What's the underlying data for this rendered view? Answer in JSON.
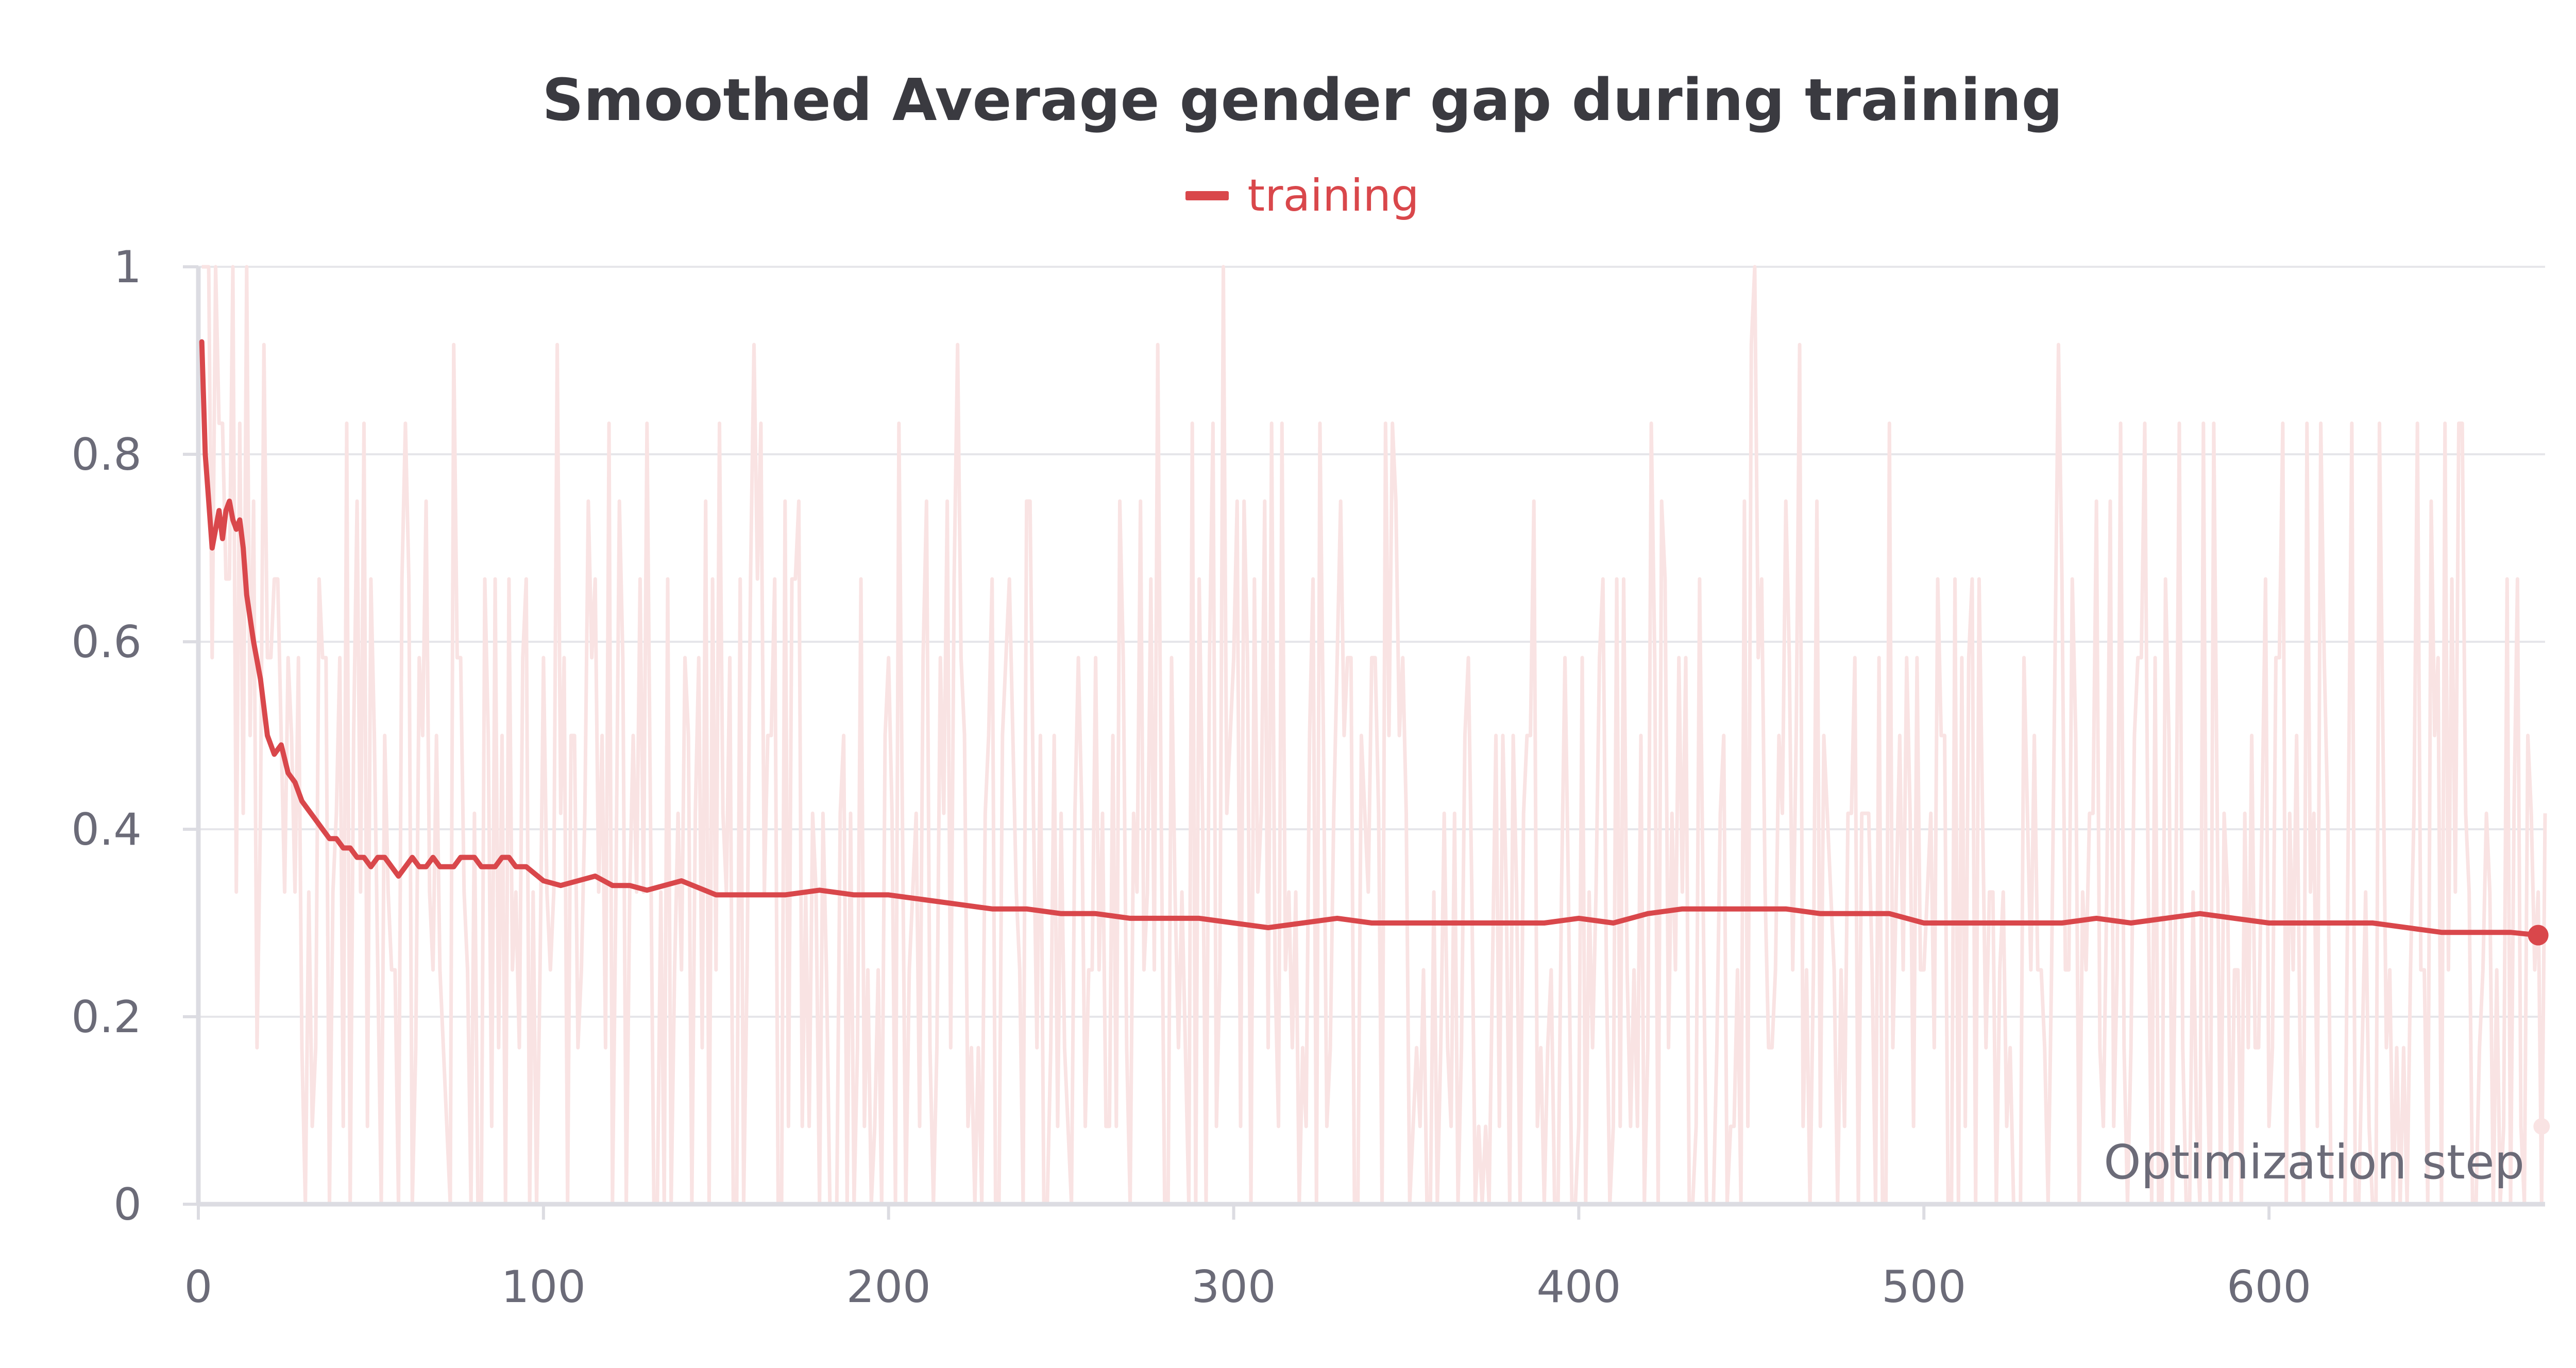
{
  "chart_data": {
    "type": "line",
    "title": "Smoothed Average gender gap during training",
    "xlabel": "Optimization step",
    "ylabel": "",
    "xlim": [
      0,
      680
    ],
    "ylim": [
      0,
      1
    ],
    "xticks": [
      0,
      100,
      200,
      300,
      400,
      500,
      600
    ],
    "yticks": [
      0,
      0.2,
      0.4,
      0.6,
      0.8,
      1
    ],
    "ytick_labels": [
      "0",
      "0.2",
      "0.4",
      "0.6",
      "0.8",
      "1"
    ],
    "grid": true,
    "legend": "top-center",
    "series": [
      {
        "name": "training",
        "color": "#d9474b",
        "raw_color": "#f9e3e3",
        "smoothed": {
          "x": [
            1,
            2,
            3,
            4,
            5,
            6,
            7,
            8,
            9,
            10,
            11,
            12,
            13,
            14,
            16,
            18,
            20,
            22,
            24,
            26,
            28,
            30,
            32,
            34,
            36,
            38,
            40,
            42,
            44,
            46,
            48,
            50,
            52,
            54,
            56,
            58,
            60,
            62,
            64,
            66,
            68,
            70,
            72,
            74,
            76,
            78,
            80,
            82,
            84,
            86,
            88,
            90,
            92,
            95,
            100,
            105,
            110,
            115,
            120,
            125,
            130,
            135,
            140,
            150,
            160,
            170,
            180,
            190,
            200,
            210,
            220,
            230,
            240,
            250,
            260,
            270,
            280,
            290,
            300,
            310,
            320,
            330,
            340,
            350,
            360,
            370,
            380,
            390,
            400,
            410,
            420,
            430,
            440,
            450,
            460,
            470,
            480,
            490,
            500,
            510,
            520,
            530,
            540,
            550,
            560,
            570,
            580,
            590,
            600,
            610,
            620,
            630,
            640,
            650,
            660,
            670,
            678
          ],
          "y": [
            0.92,
            0.8,
            0.75,
            0.7,
            0.72,
            0.74,
            0.71,
            0.74,
            0.75,
            0.73,
            0.72,
            0.73,
            0.7,
            0.65,
            0.6,
            0.56,
            0.5,
            0.48,
            0.49,
            0.46,
            0.45,
            0.43,
            0.42,
            0.41,
            0.4,
            0.39,
            0.39,
            0.38,
            0.38,
            0.37,
            0.37,
            0.36,
            0.37,
            0.37,
            0.36,
            0.35,
            0.36,
            0.37,
            0.36,
            0.36,
            0.37,
            0.36,
            0.36,
            0.36,
            0.37,
            0.37,
            0.37,
            0.36,
            0.36,
            0.36,
            0.37,
            0.37,
            0.36,
            0.36,
            0.345,
            0.34,
            0.345,
            0.35,
            0.34,
            0.34,
            0.335,
            0.34,
            0.345,
            0.33,
            0.33,
            0.33,
            0.335,
            0.33,
            0.33,
            0.325,
            0.32,
            0.315,
            0.315,
            0.31,
            0.31,
            0.305,
            0.305,
            0.305,
            0.3,
            0.295,
            0.3,
            0.305,
            0.3,
            0.3,
            0.3,
            0.3,
            0.3,
            0.3,
            0.305,
            0.3,
            0.31,
            0.315,
            0.315,
            0.315,
            0.315,
            0.31,
            0.31,
            0.31,
            0.3,
            0.3,
            0.3,
            0.3,
            0.3,
            0.305,
            0.3,
            0.305,
            0.31,
            0.305,
            0.3,
            0.3,
            0.3,
            0.3,
            0.295,
            0.29,
            0.29,
            0.29,
            0.287
          ]
        }
      }
    ]
  }
}
